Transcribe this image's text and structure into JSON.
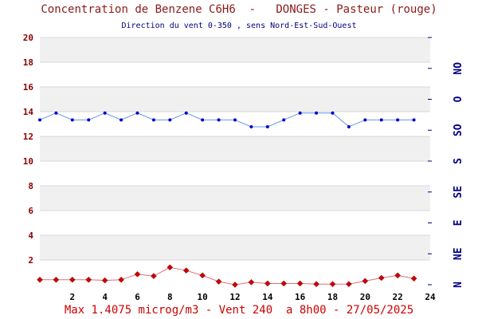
{
  "title": "Concentration de Benzene C6H6  -   DONGES - Pasteur (rouge)",
  "subtitle": "Direction du vent 0-350 , sens Nord-Est-Sud-Ouest",
  "footer": "Max 1.4075 microg/m3 - Vent 240  a 8h00 - 27/05/2025",
  "colors": {
    "title": "#8b1a1a",
    "subtitle": "#000080",
    "footer": "#cc0000",
    "left_axis_text": "#8b0000",
    "right_axis_text": "#000080",
    "band": "#f0f0f0",
    "grid": "#d8d8d8",
    "wind_line": "#6495ed",
    "wind_marker": "#0000cd",
    "benzene_line": "#e07070",
    "benzene_marker": "#cc0000",
    "benzene_marker_edge": "#800000"
  },
  "chart_data": {
    "type": "line",
    "x_ticks": [
      "2",
      "4",
      "6",
      "8",
      "10",
      "12",
      "14",
      "16",
      "18",
      "20",
      "22",
      "24"
    ],
    "xlim": [
      0,
      24
    ],
    "y_ticks": [
      "2",
      "4",
      "6",
      "8",
      "10",
      "12",
      "14",
      "16",
      "18",
      "20"
    ],
    "ylim": [
      0,
      20
    ],
    "y2_ticks": [
      "N",
      "NE",
      "E",
      "SE",
      "S",
      "SO",
      "O",
      "NO"
    ],
    "grid": true,
    "series": [
      {
        "role": "benzene",
        "x": [
          0,
          1,
          2,
          3,
          4,
          5,
          6,
          7,
          8,
          9,
          10,
          11,
          12,
          13,
          14,
          15,
          16,
          17,
          18,
          19,
          20,
          21,
          22,
          23
        ],
        "values": [
          0.4,
          0.4,
          0.4,
          0.4,
          0.35,
          0.4,
          0.85,
          0.7,
          1.4,
          1.15,
          0.75,
          0.25,
          0.0,
          0.2,
          0.1,
          0.1,
          0.1,
          0.05,
          0.05,
          0.05,
          0.3,
          0.55,
          0.75,
          0.5
        ]
      },
      {
        "role": "wind_direction",
        "x": [
          0,
          1,
          2,
          3,
          4,
          5,
          6,
          7,
          8,
          9,
          10,
          11,
          12,
          13,
          14,
          15,
          16,
          17,
          18,
          19,
          20,
          21,
          22,
          23
        ],
        "values": [
          240,
          250,
          240,
          240,
          250,
          240,
          250,
          240,
          240,
          250,
          240,
          240,
          240,
          230,
          230,
          240,
          250,
          250,
          250,
          230,
          240,
          240,
          240,
          240
        ]
      }
    ]
  }
}
